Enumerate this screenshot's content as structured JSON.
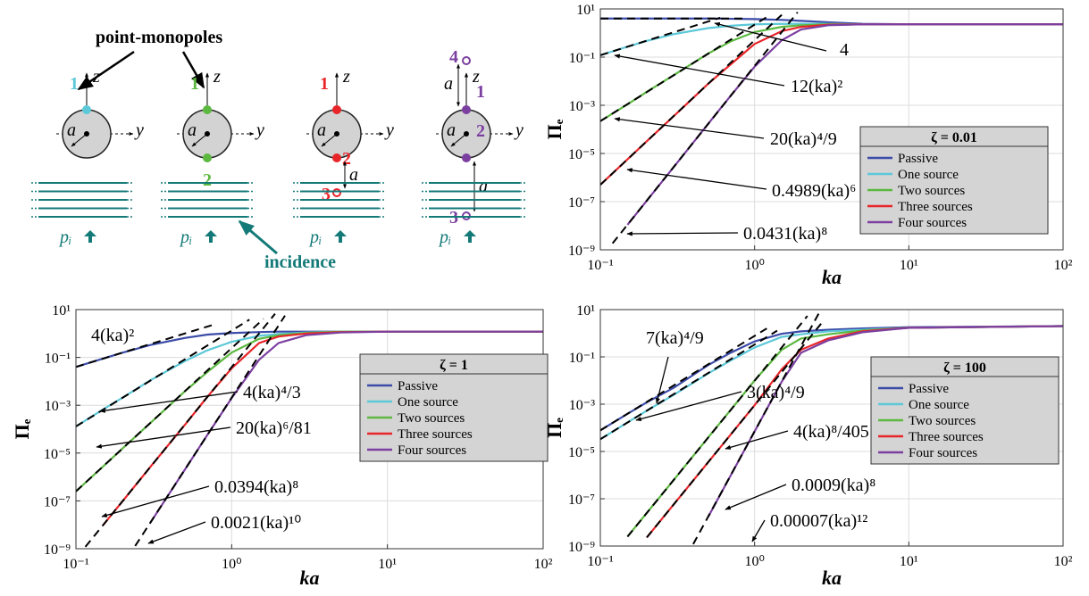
{
  "diagram": {
    "title": "point-monopoles",
    "incidence": "incidence",
    "z": "z",
    "y": "y",
    "a": "a",
    "pressure": "pᵢ",
    "sources": [
      [
        "1"
      ],
      [
        "1",
        "2"
      ],
      [
        "1",
        "2",
        "3"
      ],
      [
        "4",
        "1",
        "2",
        "3"
      ]
    ]
  },
  "chart_data": [
    {
      "type": "line",
      "xscale": "log",
      "yscale": "log",
      "xlabel": "ka",
      "ylabel": "Πₑ",
      "legend_title": "ζ = 0.01",
      "legend": "lower right",
      "grid": true,
      "xlim": [
        0.1,
        100
      ],
      "ylim": [
        1e-09,
        10
      ],
      "xticks": [
        {
          "value": 0.1,
          "label": "10⁻¹"
        },
        {
          "value": 1,
          "label": "10⁰"
        },
        {
          "value": 10,
          "label": "10¹"
        },
        {
          "value": 100,
          "label": "10²"
        }
      ],
      "yticks": [
        {
          "value": 1e-09,
          "label": "10⁻⁹"
        },
        {
          "value": 1e-07,
          "label": "10⁻⁷"
        },
        {
          "value": 1e-05,
          "label": "10⁻⁵"
        },
        {
          "value": 0.001,
          "label": "10⁻³"
        },
        {
          "value": 0.1,
          "label": "10⁻¹"
        },
        {
          "value": 10,
          "label": "10¹"
        }
      ],
      "x": [
        0.1,
        0.15,
        0.2,
        0.3,
        0.5,
        0.7,
        1,
        1.5,
        2,
        3,
        5,
        10,
        100
      ],
      "series": [
        {
          "name": "Passive",
          "color": "#3b4ba8",
          "values": [
            4,
            4,
            4,
            4,
            4,
            3.9,
            3.8,
            3.5,
            3.2,
            2.8,
            2.4,
            2.3,
            2.3
          ]
        },
        {
          "name": "One source",
          "color": "#5cc8d8",
          "values": [
            0.12,
            0.27,
            0.47,
            0.9,
            1.6,
            2,
            2.3,
            2.4,
            2.4,
            2.4,
            2.3,
            2.3,
            2.3
          ]
        },
        {
          "name": "Two sources",
          "color": "#5cb840",
          "values": [
            0.00022,
            0.0011,
            0.0036,
            0.018,
            0.14,
            0.45,
            1.1,
            1.8,
            2.1,
            2.3,
            2.3,
            2.3,
            2.3
          ]
        },
        {
          "name": "Three sources",
          "color": "#e8262a",
          "values": [
            5e-07,
            5.7e-06,
            3.2e-05,
            0.00036,
            0.0078,
            0.05,
            0.35,
            1.2,
            1.8,
            2.2,
            2.3,
            2.3,
            2.3
          ]
        },
        {
          "name": "Four sources",
          "color": "#7b3fa0",
          "values": [
            null,
            1.1e-08,
            1.1e-07,
            2.8e-06,
            0.00017,
            0.0025,
            0.04,
            0.5,
            1.4,
            2.1,
            2.3,
            2.3,
            2.3
          ]
        }
      ],
      "asymptotes": [
        {
          "label": "4",
          "x": [
            0.1,
            0.9
          ],
          "values": [
            4,
            4
          ]
        },
        {
          "label": "12(ka)²",
          "x": [
            0.1,
            0.6
          ],
          "values": [
            0.12,
            4.32
          ]
        },
        {
          "label": "20(ka)⁴/9",
          "x": [
            0.1,
            1.2
          ],
          "values": [
            0.00022,
            4.6
          ]
        },
        {
          "label": "0.4989(ka)⁶",
          "x": [
            0.1,
            1.5
          ],
          "values": [
            5e-07,
            5.7
          ]
        },
        {
          "label": "0.0431(ka)⁸",
          "x": [
            0.12,
            1.9
          ],
          "values": [
            1.85e-09,
            7.3
          ]
        }
      ]
    },
    {
      "type": "line",
      "xscale": "log",
      "yscale": "log",
      "xlabel": "ka",
      "ylabel": "Πₑ",
      "legend_title": "ζ = 1",
      "legend": "lower right",
      "grid": true,
      "xlim": [
        0.1,
        100
      ],
      "ylim": [
        1e-09,
        10
      ],
      "xticks": [
        {
          "value": 0.1,
          "label": "10⁻¹"
        },
        {
          "value": 1,
          "label": "10⁰"
        },
        {
          "value": 10,
          "label": "10¹"
        },
        {
          "value": 100,
          "label": "10²"
        }
      ],
      "yticks": [
        {
          "value": 1e-09,
          "label": "10⁻⁹"
        },
        {
          "value": 1e-07,
          "label": "10⁻⁷"
        },
        {
          "value": 1e-05,
          "label": "10⁻⁵"
        },
        {
          "value": 0.001,
          "label": "10⁻³"
        },
        {
          "value": 0.1,
          "label": "10⁻¹"
        },
        {
          "value": 10,
          "label": "10¹"
        }
      ],
      "x": [
        0.1,
        0.15,
        0.2,
        0.3,
        0.5,
        0.7,
        1,
        1.5,
        2,
        3,
        5,
        10,
        100
      ],
      "series": [
        {
          "name": "Passive",
          "color": "#3b4ba8",
          "values": [
            0.04,
            0.09,
            0.16,
            0.33,
            0.65,
            0.9,
            1.05,
            1.15,
            1.2,
            1.2,
            1.2,
            1.2,
            1.2
          ]
        },
        {
          "name": "One source",
          "color": "#5cc8d8",
          "values": [
            0.00013,
            0.00068,
            0.0021,
            0.011,
            0.07,
            0.2,
            0.45,
            0.8,
            0.95,
            1.1,
            1.2,
            1.2,
            1.2
          ]
        },
        {
          "name": "Two sources",
          "color": "#5cb840",
          "values": [
            2.5e-07,
            2.8e-06,
            1.6e-05,
            0.00018,
            0.0038,
            0.025,
            0.16,
            0.6,
            0.85,
            1.05,
            1.2,
            1.2,
            1.2
          ]
        },
        {
          "name": "Three sources",
          "color": "#e8262a",
          "values": [
            null,
            1e-08,
            1e-07,
            2.6e-06,
            0.00015,
            0.0023,
            0.035,
            0.4,
            0.75,
            1,
            1.15,
            1.2,
            1.2
          ]
        },
        {
          "name": "Four sources",
          "color": "#7b3fa0",
          "values": [
            null,
            null,
            null,
            1.2e-08,
            2e-06,
            5.9e-05,
            0.002,
            0.08,
            0.4,
            0.85,
            1.1,
            1.2,
            1.2
          ]
        }
      ],
      "asymptotes": [
        {
          "label": "4(ka)²",
          "x": [
            0.1,
            0.8
          ],
          "values": [
            0.04,
            2.56
          ]
        },
        {
          "label": "4(ka)⁴/3",
          "x": [
            0.1,
            1.3
          ],
          "values": [
            0.00013,
            3.8
          ]
        },
        {
          "label": "20(ka)⁶/81",
          "x": [
            0.1,
            1.6
          ],
          "values": [
            2.5e-07,
            4.1
          ]
        },
        {
          "label": "0.0394(ka)⁸",
          "x": [
            0.115,
            1.9
          ],
          "values": [
            1.2e-09,
            6.7
          ]
        },
        {
          "label": "0.0021(ka)¹⁰",
          "x": [
            0.24,
            2.2
          ],
          "values": [
            1.3e-09,
            5.6
          ]
        }
      ]
    },
    {
      "type": "line",
      "xscale": "log",
      "yscale": "log",
      "xlabel": "ka",
      "ylabel": "Πₑ",
      "legend_title": "ζ = 100",
      "legend": "lower right",
      "grid": true,
      "xlim": [
        0.1,
        100
      ],
      "ylim": [
        1e-09,
        10
      ],
      "xticks": [
        {
          "value": 0.1,
          "label": "10⁻¹"
        },
        {
          "value": 1,
          "label": "10⁰"
        },
        {
          "value": 10,
          "label": "10¹"
        },
        {
          "value": 100,
          "label": "10²"
        }
      ],
      "yticks": [
        {
          "value": 1e-09,
          "label": "10⁻⁹"
        },
        {
          "value": 1e-07,
          "label": "10⁻⁷"
        },
        {
          "value": 1e-05,
          "label": "10⁻⁵"
        },
        {
          "value": 0.001,
          "label": "10⁻³"
        },
        {
          "value": 0.1,
          "label": "10⁻¹"
        },
        {
          "value": 10,
          "label": "10¹"
        }
      ],
      "x": [
        0.1,
        0.15,
        0.2,
        0.3,
        0.5,
        0.7,
        1,
        1.5,
        2,
        3,
        5,
        10,
        100
      ],
      "series": [
        {
          "name": "Passive",
          "color": "#3b4ba8",
          "values": [
            7.8e-05,
            0.00039,
            0.0012,
            0.005,
            0.045,
            0.15,
            0.45,
            0.95,
            1.2,
            1.4,
            1.6,
            1.8,
            2
          ]
        },
        {
          "name": "One source",
          "color": "#5cc8d8",
          "values": [
            3.3e-05,
            0.00017,
            0.00053,
            0.0025,
            0.02,
            0.07,
            0.25,
            0.7,
            0.9,
            1.2,
            1.4,
            1.7,
            2
          ]
        },
        {
          "name": "Two sources",
          "color": "#5cb840",
          "values": [
            null,
            2.5e-09,
            2.5e-08,
            6.4e-07,
            3.9e-05,
            0.00057,
            0.01,
            0.2,
            0.6,
            0.9,
            1.3,
            1.7,
            2
          ]
        },
        {
          "name": "Three sources",
          "color": "#e8262a",
          "values": [
            null,
            null,
            2.3e-09,
            5.9e-08,
            3.5e-06,
            5.2e-05,
            0.0009,
            0.03,
            0.2,
            0.6,
            1.2,
            1.7,
            2
          ]
        },
        {
          "name": "Four sources",
          "color": "#7b3fa0",
          "values": [
            null,
            null,
            null,
            null,
            1.7e-08,
            9.7e-07,
            7e-05,
            0.009,
            0.15,
            0.5,
            1.1,
            1.7,
            2
          ]
        }
      ],
      "asymptotes": [
        {
          "label": "7(ka)⁴/9",
          "x": [
            0.1,
            1.2
          ],
          "values": [
            7.8e-05,
            1.6
          ]
        },
        {
          "label": "3(ka)⁴/9",
          "x": [
            0.1,
            1.4
          ],
          "values": [
            3.3e-05,
            1.28
          ]
        },
        {
          "label": "4(ka)⁸/405",
          "x": [
            0.15,
            2.2
          ],
          "values": [
            2.5e-09,
            5.4
          ]
        },
        {
          "label": "0.0009(ka)⁸",
          "x": [
            0.2,
            2.8
          ],
          "values": [
            2.3e-09,
            3.4
          ]
        },
        {
          "label": "0.00007(ka)¹²",
          "x": [
            0.4,
            2.6
          ],
          "values": [
            1.2e-09,
            6.7
          ]
        }
      ]
    }
  ]
}
